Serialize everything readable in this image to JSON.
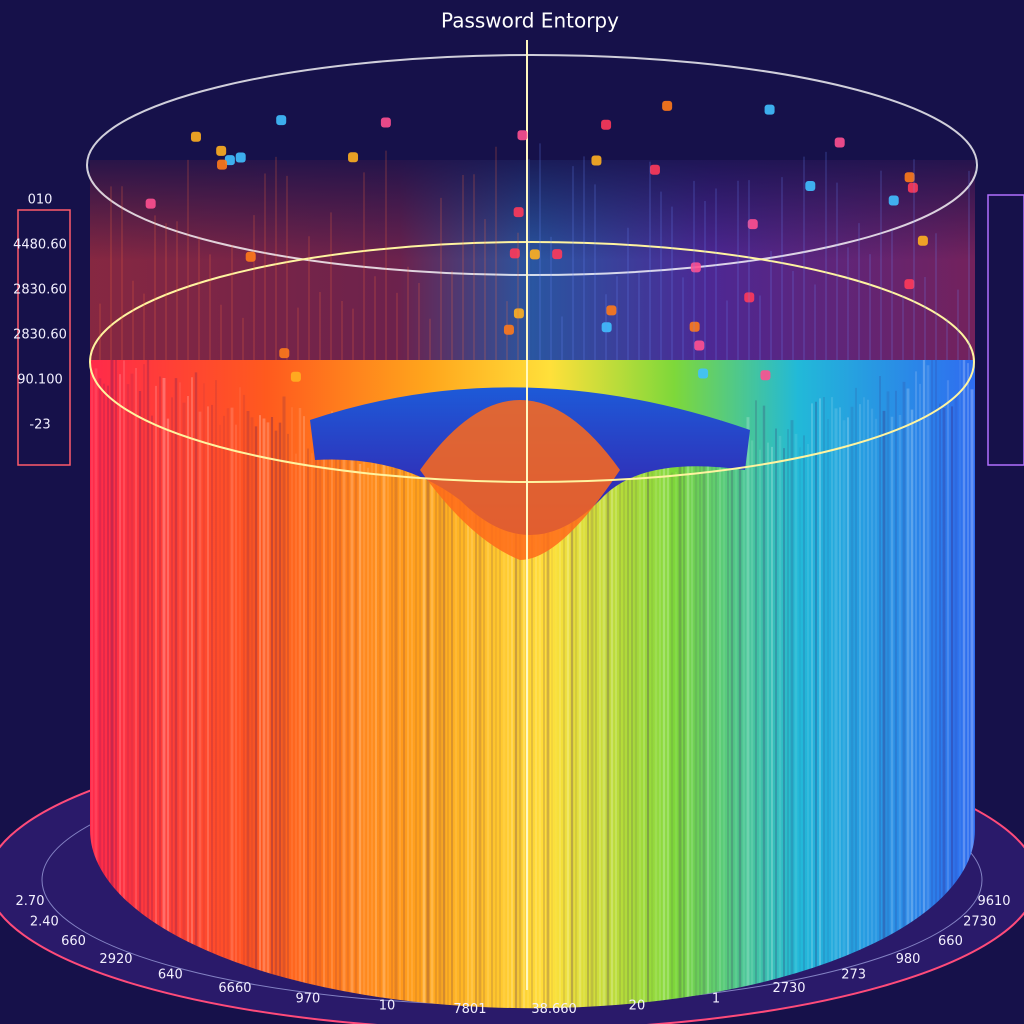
{
  "title": "Password Entorpy",
  "left_labels": [
    "010",
    "4480.60",
    "2830.60",
    "2830.60",
    "90.100",
    "-23"
  ],
  "bottom_labels": [
    "2.70",
    "2.40",
    "660",
    "2920",
    "640",
    "6660",
    "970",
    "10",
    "7801",
    "38.660",
    "20",
    "1",
    "2730",
    "273",
    "980",
    "660",
    "2730",
    "9610"
  ]
}
